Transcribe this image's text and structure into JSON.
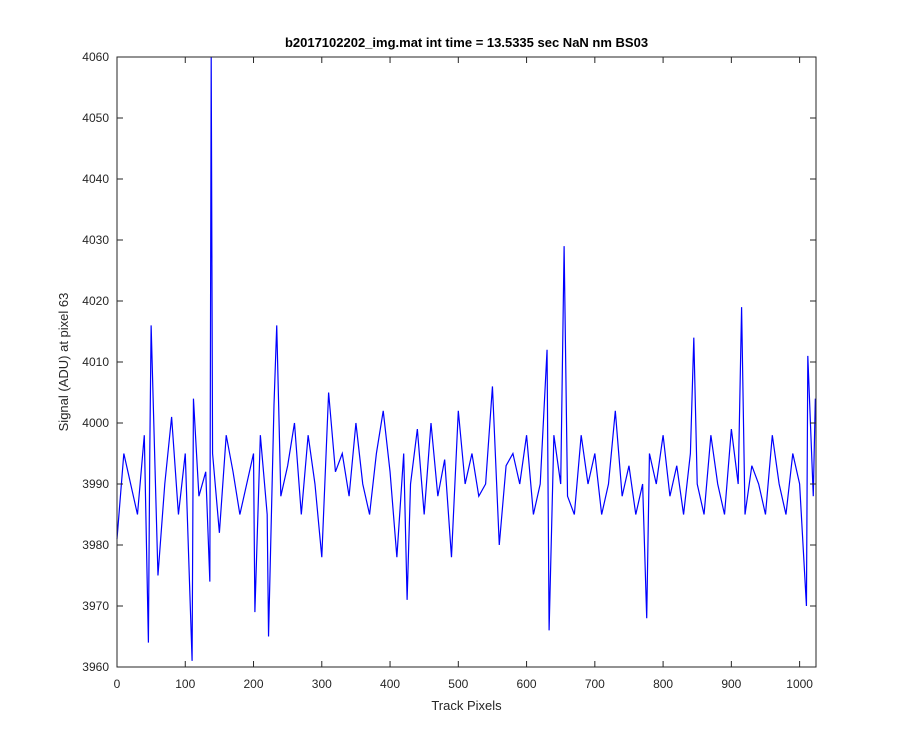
{
  "chart_data": {
    "type": "line",
    "title": "b2017102202_img.mat int time = 13.5335 sec  NaN nm BS03",
    "xlabel": "Track Pixels",
    "ylabel": "Signal (ADU) at pixel 63",
    "xlim": [
      0,
      1024
    ],
    "ylim": [
      3960,
      4060
    ],
    "xticks": [
      "0",
      "100",
      "200",
      "300",
      "400",
      "500",
      "600",
      "700",
      "800",
      "900",
      "1000"
    ],
    "yticks": [
      "3960",
      "3970",
      "3980",
      "3990",
      "4000",
      "4010",
      "4020",
      "4030",
      "4040",
      "4050",
      "4060"
    ],
    "grid": false,
    "legend": "none",
    "series": [
      {
        "color": "#0000ff",
        "points_note_x": "x values are track pixel indices",
        "x": [
          0,
          10,
          20,
          30,
          40,
          46,
          48,
          50,
          60,
          70,
          80,
          90,
          100,
          110,
          112,
          120,
          130,
          136,
          138,
          140,
          150,
          160,
          170,
          180,
          190,
          200,
          202,
          210,
          220,
          222,
          230,
          234,
          240,
          250,
          260,
          270,
          280,
          290,
          300,
          310,
          320,
          330,
          340,
          350,
          360,
          370,
          380,
          390,
          400,
          410,
          420,
          425,
          430,
          440,
          450,
          460,
          470,
          480,
          490,
          500,
          510,
          520,
          530,
          540,
          550,
          560,
          570,
          580,
          590,
          600,
          610,
          620,
          630,
          633,
          640,
          650,
          655,
          660,
          670,
          680,
          690,
          700,
          710,
          720,
          730,
          740,
          750,
          760,
          770,
          776,
          780,
          790,
          800,
          810,
          820,
          830,
          840,
          845,
          850,
          860,
          870,
          880,
          890,
          900,
          910,
          915,
          920,
          930,
          940,
          950,
          960,
          970,
          980,
          990,
          1000,
          1010,
          1012,
          1020,
          1023
        ],
        "y": [
          3981,
          3995,
          3990,
          3985,
          3998,
          3964,
          3995,
          4016,
          3975,
          3990,
          4001,
          3985,
          3995,
          3961,
          4004,
          3988,
          3992,
          3974,
          4060,
          3995,
          3982,
          3998,
          3992,
          3985,
          3990,
          3995,
          3969,
          3998,
          3985,
          3965,
          4003,
          4016,
          3988,
          3993,
          4000,
          3985,
          3998,
          3990,
          3978,
          4005,
          3992,
          3995,
          3988,
          4000,
          3990,
          3985,
          3995,
          4002,
          3992,
          3978,
          3995,
          3971,
          3990,
          3999,
          3985,
          4000,
          3988,
          3994,
          3978,
          4002,
          3990,
          3995,
          3988,
          3990,
          4006,
          3980,
          3993,
          3995,
          3990,
          3998,
          3985,
          3990,
          4012,
          3966,
          3998,
          3990,
          4029,
          3988,
          3985,
          3998,
          3990,
          3995,
          3985,
          3990,
          4002,
          3988,
          3993,
          3985,
          3990,
          3968,
          3995,
          3990,
          3998,
          3988,
          3993,
          3985,
          3995,
          4014,
          3990,
          3985,
          3998,
          3990,
          3985,
          3999,
          3990,
          4019,
          3985,
          3993,
          3990,
          3985,
          3998,
          3990,
          3985,
          3995,
          3990,
          3970,
          4011,
          3988,
          4004
        ]
      }
    ]
  }
}
